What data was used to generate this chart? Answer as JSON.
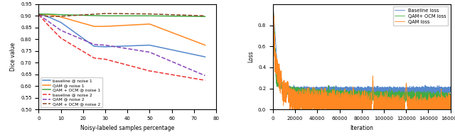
{
  "left_chart": {
    "xlabel": "Noisy-labeled samples percentage",
    "ylabel": "Dice value",
    "xlim": [
      0,
      80
    ],
    "ylim": [
      0.5,
      0.95
    ],
    "yticks": [
      0.5,
      0.55,
      0.6,
      0.65,
      0.7,
      0.75,
      0.8,
      0.85,
      0.9,
      0.95
    ],
    "xticks": [
      0,
      10,
      20,
      30,
      40,
      50,
      60,
      70,
      80
    ],
    "noise1": {
      "x": [
        0,
        5,
        10,
        25,
        30,
        50,
        75
      ],
      "baseline": [
        0.908,
        0.893,
        0.872,
        0.77,
        0.768,
        0.775,
        0.725
      ],
      "qam": [
        0.908,
        0.905,
        0.895,
        0.855,
        0.855,
        0.865,
        0.775
      ],
      "qam_ocm": [
        0.908,
        0.907,
        0.905,
        0.901,
        0.9,
        0.9,
        0.897
      ]
    },
    "noise2": {
      "x": [
        0,
        5,
        10,
        25,
        30,
        50,
        75
      ],
      "baseline": [
        0.905,
        0.853,
        0.805,
        0.72,
        0.715,
        0.665,
        0.625
      ],
      "qam": [
        0.905,
        0.872,
        0.838,
        0.778,
        0.775,
        0.745,
        0.645
      ],
      "qam_ocm": [
        0.905,
        0.897,
        0.898,
        0.907,
        0.91,
        0.908,
        0.9
      ]
    },
    "colors": {
      "baseline_n1": "#5588cc",
      "qam_n1": "#ff8822",
      "qam_ocm_n1": "#44aa44",
      "baseline_n2": "#ee3333",
      "qam_n2": "#8844bb",
      "qam_ocm_n2": "#884422"
    },
    "legend": [
      "baseline @ noise 1",
      "QAM @ noise 1",
      "QAM + OCM @ noise 1",
      "baseline @ noise 2",
      "QAM @ noise 2",
      "QAM + OCM @ noise 2"
    ]
  },
  "right_chart": {
    "xlabel": "Iteration",
    "ylabel": "Loss",
    "xlim": [
      0,
      160000
    ],
    "ylim": [
      0.0,
      1.0
    ],
    "yticks": [
      0.0,
      0.2,
      0.4,
      0.6,
      0.8
    ],
    "xticks": [
      0,
      20000,
      40000,
      60000,
      80000,
      100000,
      120000,
      140000,
      160000
    ],
    "colors": {
      "baseline": "#5588cc",
      "qam": "#ff8822",
      "qam_ocm": "#44aa44"
    },
    "legend": [
      "Baseline loss",
      "QAM loss",
      "QAM+ OCM loss"
    ]
  }
}
